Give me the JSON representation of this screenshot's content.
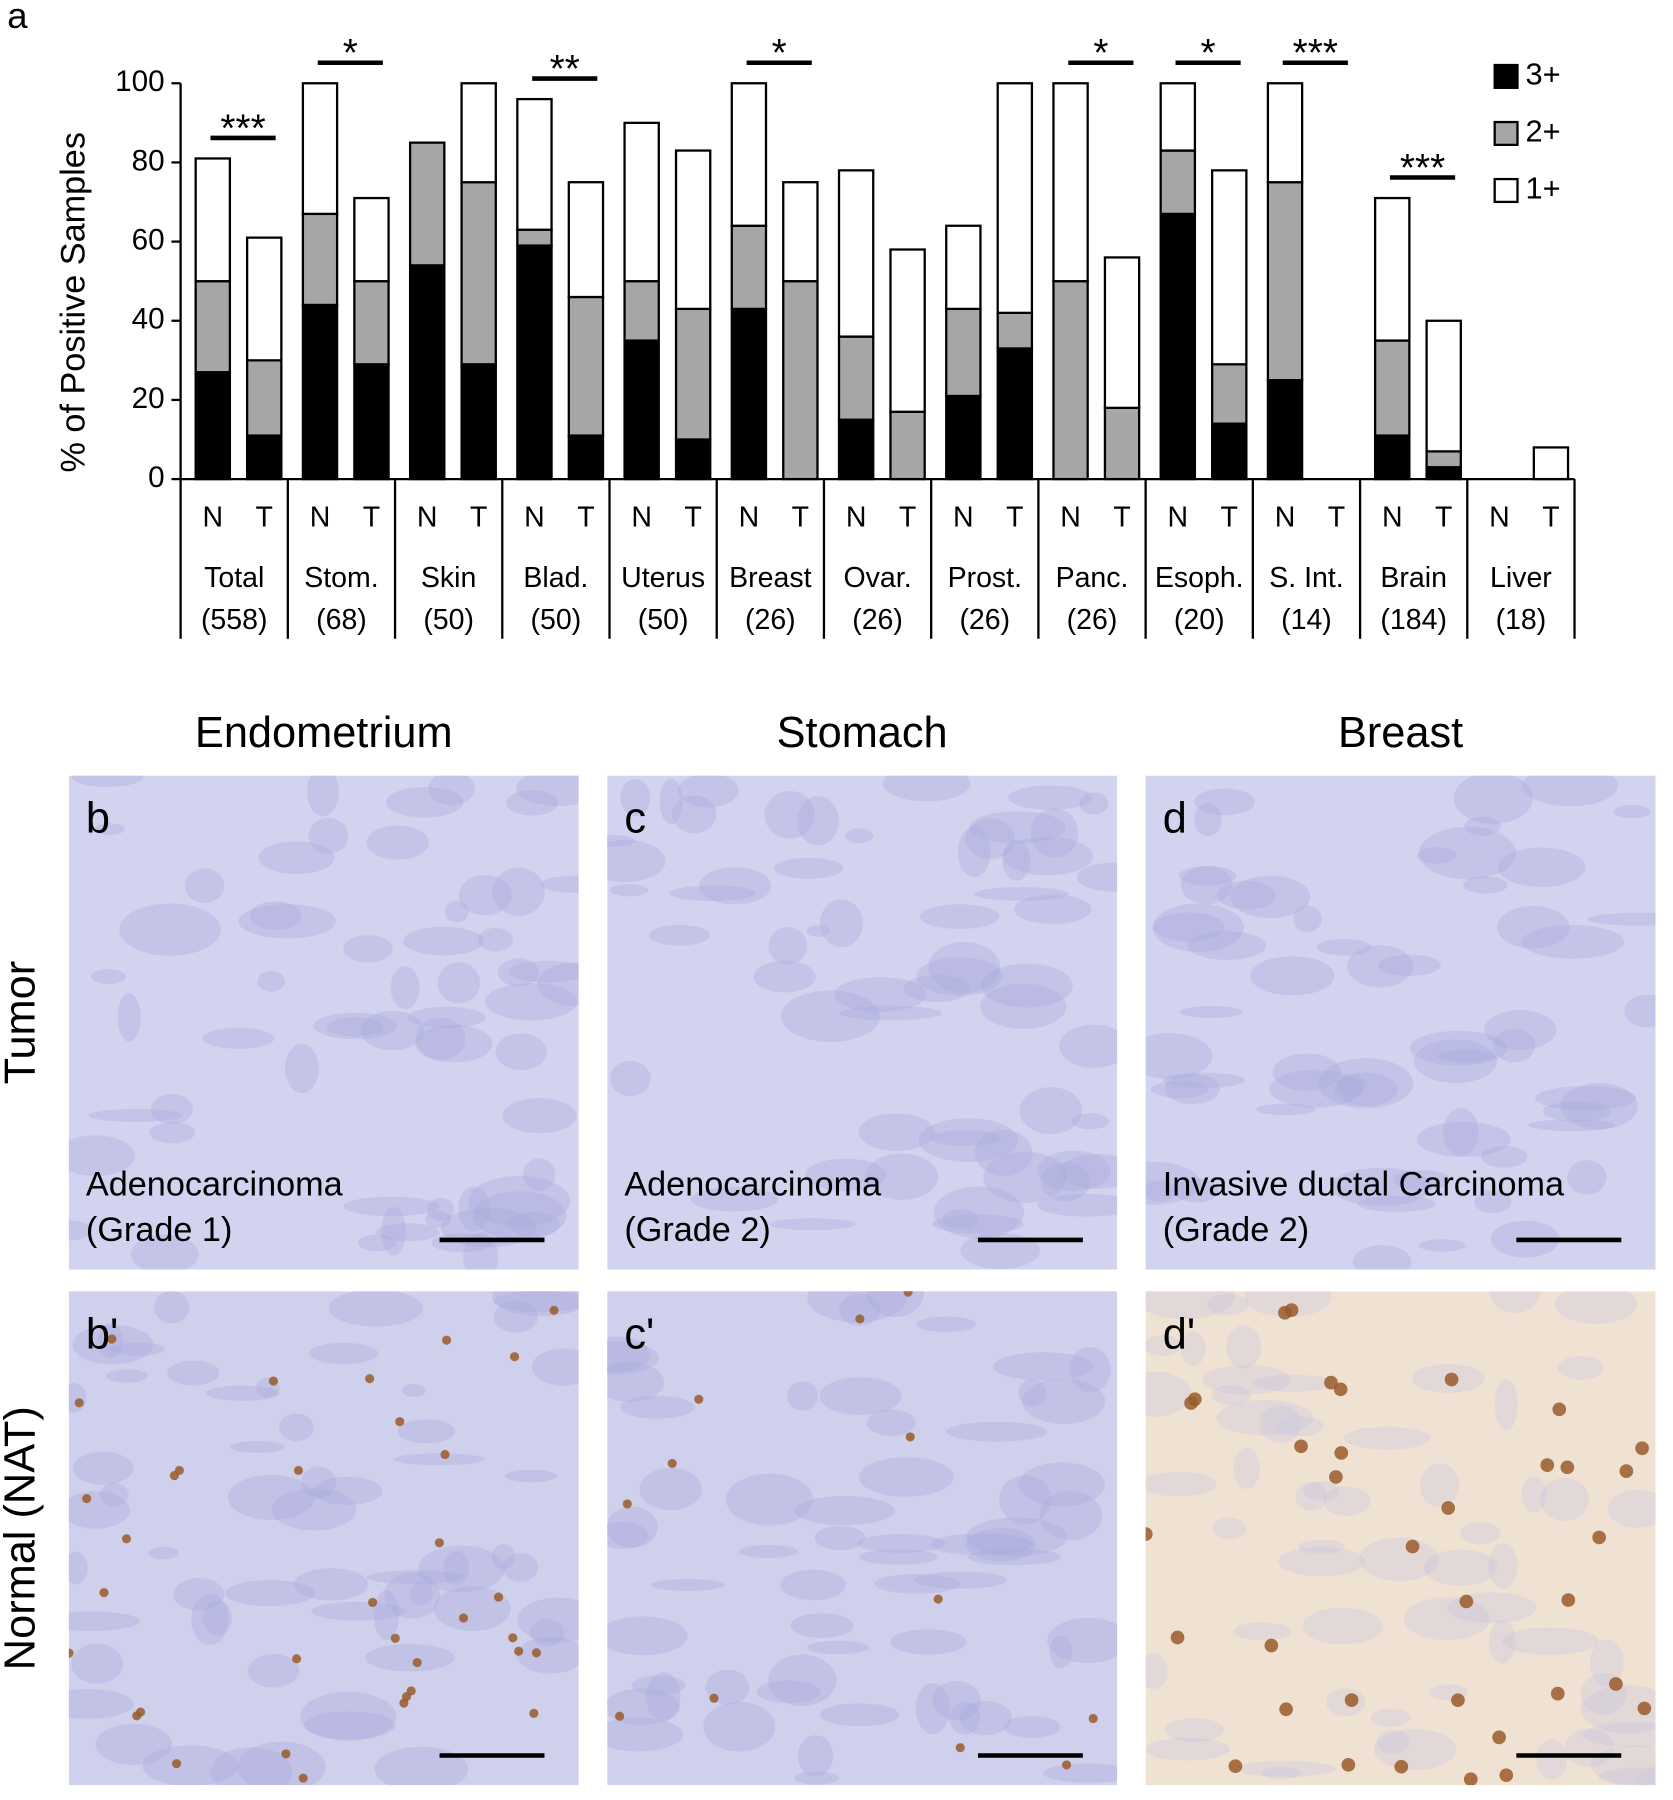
{
  "chart_data": {
    "type": "stacked-bar",
    "panel_label": "a",
    "y_label": "% of Positive Samples",
    "ylim": [
      0,
      100
    ],
    "yticks": [
      0,
      20,
      40,
      60,
      80,
      100
    ],
    "legend": "top-right",
    "subcategories": [
      "N",
      "T"
    ],
    "groups": [
      {
        "name": "Total",
        "count": "(558)"
      },
      {
        "name": "Stom.",
        "count": "(68)"
      },
      {
        "name": "Skin",
        "count": "(50)"
      },
      {
        "name": "Blad.",
        "count": "(50)"
      },
      {
        "name": "Uterus",
        "count": "(50)"
      },
      {
        "name": "Breast",
        "count": "(26)"
      },
      {
        "name": "Ovar.",
        "count": "(26)"
      },
      {
        "name": "Prost.",
        "count": "(26)"
      },
      {
        "name": "Panc.",
        "count": "(26)"
      },
      {
        "name": "Esoph.",
        "count": "(20)"
      },
      {
        "name": "S. Int.",
        "count": "(14)"
      },
      {
        "name": "Brain",
        "count": "(184)"
      },
      {
        "name": "Liver",
        "count": "(18)"
      }
    ],
    "significance": [
      "***",
      "*",
      null,
      "**",
      null,
      "*",
      null,
      null,
      "*",
      "*",
      "***",
      "***",
      null
    ],
    "series": [
      {
        "name": "3+",
        "color": "#000000",
        "values": [
          27,
          11,
          44,
          29,
          54,
          29,
          59,
          11,
          35,
          10,
          43,
          0,
          15,
          0,
          21,
          33,
          0,
          0,
          67,
          14,
          25,
          0,
          11,
          3,
          0,
          0
        ]
      },
      {
        "name": "2+",
        "color": "#a6a6a6",
        "values": [
          23,
          19,
          23,
          21,
          31,
          46,
          4,
          35,
          15,
          33,
          21,
          50,
          21,
          17,
          22,
          9,
          50,
          18,
          16,
          15,
          50,
          0,
          24,
          4,
          0,
          0
        ]
      },
      {
        "name": "1+",
        "color": "#ffffff",
        "values": [
          31,
          31,
          33,
          21,
          0,
          25,
          33,
          29,
          40,
          40,
          36,
          25,
          42,
          41,
          21,
          58,
          50,
          38,
          17,
          49,
          25,
          0,
          36,
          33,
          0,
          8
        ]
      }
    ]
  },
  "figure": {
    "columns": [
      "Endometrium",
      "Stomach",
      "Breast"
    ],
    "rows": [
      "Tumor",
      "Normal (NAT)"
    ],
    "panels": [
      {
        "letter": "b",
        "caption": [
          "Adenocarcinoma",
          "(Grade 1)"
        ]
      },
      {
        "letter": "c",
        "caption": [
          "Adenocarcinoma",
          "(Grade 2)"
        ]
      },
      {
        "letter": "d",
        "caption": [
          "Invasive ductal Carcinoma",
          "(Grade 2)"
        ]
      },
      {
        "letter": "b'"
      },
      {
        "letter": "c'"
      },
      {
        "letter": "d'"
      }
    ]
  }
}
